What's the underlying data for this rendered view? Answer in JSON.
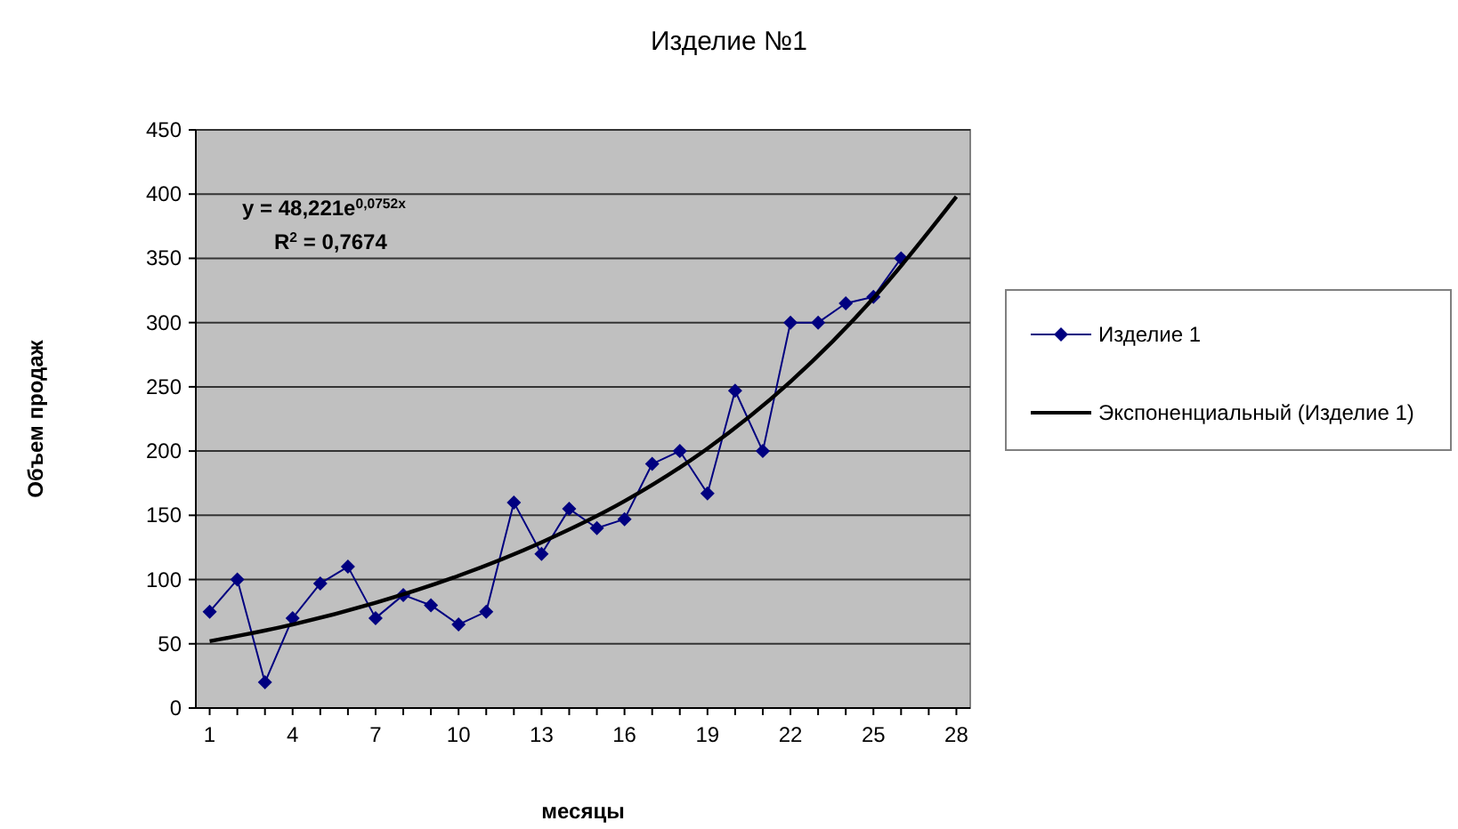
{
  "chart_data": {
    "type": "line",
    "title": "Изделие №1",
    "xlabel": "месяцы",
    "ylabel": "Объем продаж",
    "annotations": [
      "y = 48,221e$^{0,0752x}$",
      "R$^{2}$ = 0,7674"
    ],
    "xlim": [
      0.5,
      28.5
    ],
    "xticks": [
      1,
      {
        "value": 2,
        "label": null
      },
      {
        "value": 3,
        "label": null
      },
      4,
      {
        "value": 5,
        "label": null
      },
      {
        "value": 6,
        "label": null
      },
      7,
      {
        "value": 8,
        "label": null
      },
      {
        "value": 9,
        "label": null
      },
      10,
      {
        "value": 11,
        "label": null
      },
      {
        "value": 12,
        "label": null
      },
      13,
      {
        "value": 14,
        "label": null
      },
      {
        "value": 15,
        "label": null
      },
      16,
      {
        "value": 17,
        "label": null
      },
      {
        "value": 18,
        "label": null
      },
      19,
      {
        "value": 20,
        "label": null
      },
      {
        "value": 21,
        "label": null
      },
      22,
      {
        "value": 23,
        "label": null
      },
      {
        "value": 24,
        "label": null
      },
      25,
      {
        "value": 26,
        "label": null
      },
      {
        "value": 27,
        "label": null
      },
      28
    ],
    "ylim": [
      0,
      450
    ],
    "yticks": [
      0,
      50,
      100,
      150,
      200,
      250,
      300,
      350,
      400,
      450
    ],
    "grid": "y",
    "legend": "right",
    "series": [
      {
        "name": "Изделие 1",
        "color": "#000080",
        "marker": "diamond",
        "x": [
          1,
          2,
          3,
          4,
          5,
          6,
          7,
          8,
          9,
          10,
          11,
          12,
          13,
          14,
          15,
          16,
          17,
          18,
          19,
          20,
          21,
          22,
          23,
          24,
          25,
          26
        ],
        "values": [
          75,
          100,
          20,
          70,
          97,
          110,
          70,
          88,
          80,
          65,
          75,
          160,
          120,
          155,
          140,
          147,
          190,
          200,
          167,
          247,
          200,
          300,
          300,
          315,
          320,
          350
        ]
      },
      {
        "name": "Экспоненциальный (Изделие 1)",
        "color": "#000000",
        "marker": "none",
        "line_style": "solid",
        "x": [
          1,
          4,
          7,
          10,
          13,
          16,
          19,
          22,
          25,
          28
        ],
        "values": [
          52,
          65,
          82,
          103,
          129,
          161,
          202,
          254,
          319,
          398
        ]
      }
    ]
  }
}
